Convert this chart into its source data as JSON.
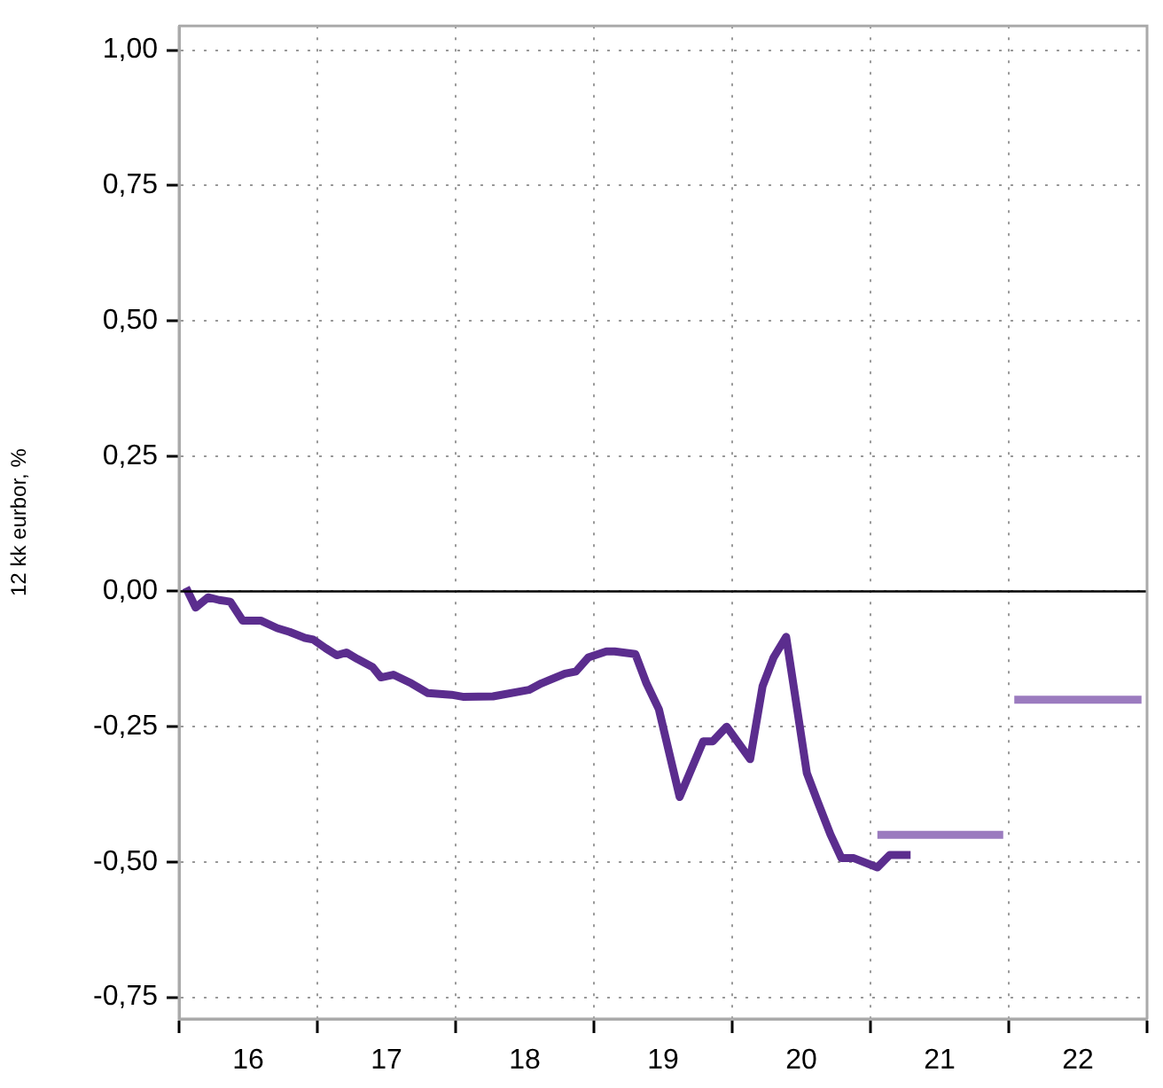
{
  "chart_data": {
    "type": "line",
    "ylabel": "12 kk eurbor, %",
    "xlim": [
      15.5,
      22.5
    ],
    "xticks": [
      {
        "value": 15.5,
        "label": null
      },
      16,
      {
        "value": 16.5,
        "label": null
      },
      17,
      {
        "value": 17.5,
        "label": null
      },
      18,
      {
        "value": 18.5,
        "label": null
      },
      19,
      {
        "value": 19.5,
        "label": null
      },
      20,
      {
        "value": 20.5,
        "label": null
      },
      21,
      {
        "value": 21.5,
        "label": null
      },
      22,
      {
        "value": 22.5,
        "label": null
      }
    ],
    "ylim": [
      -0.79,
      1.045
    ],
    "yticks": [
      {
        "value": -0.75,
        "label": "-0,75"
      },
      {
        "value": -0.5,
        "label": "-0,50"
      },
      {
        "value": -0.25,
        "label": "-0,25"
      },
      {
        "value": 0,
        "label": "0,00"
      },
      {
        "value": 0.25,
        "label": "0,25"
      },
      {
        "value": 0.5,
        "label": "0,50"
      },
      {
        "value": 0.75,
        "label": "0,75"
      },
      {
        "value": 1,
        "label": "1,00"
      }
    ],
    "grid": true,
    "legend": false,
    "marker": "none",
    "line_style": "solid",
    "ref_lines": [
      {
        "axis": "y",
        "value": 0,
        "color": "#000000"
      }
    ],
    "series": [
      {
        "color": "#5b2d8e",
        "x": [
          15.55,
          15.62,
          15.71,
          15.79,
          15.87,
          15.96,
          16.09,
          16.21,
          16.3,
          16.41,
          16.47,
          16.56,
          16.64,
          16.71,
          16.79,
          16.9,
          16.96,
          17.05,
          17.18,
          17.3,
          17.47,
          17.56,
          17.77,
          18.03,
          18.12,
          18.29,
          18.37,
          18.46,
          18.59,
          18.65,
          18.8,
          18.88,
          18.97,
          19.12,
          19.29,
          19.36,
          19.46,
          19.63,
          19.72,
          19.8,
          19.89,
          19.97,
          20.04,
          20.12,
          20.21,
          20.29,
          20.38,
          20.55,
          20.64,
          20.79
        ],
        "values": [
          0.007,
          -0.03,
          -0.011,
          -0.016,
          -0.019,
          -0.054,
          -0.054,
          -0.068,
          -0.075,
          -0.086,
          -0.089,
          -0.105,
          -0.118,
          -0.113,
          -0.125,
          -0.14,
          -0.159,
          -0.154,
          -0.17,
          -0.188,
          -0.191,
          -0.195,
          -0.194,
          -0.182,
          -0.17,
          -0.152,
          -0.148,
          -0.122,
          -0.111,
          -0.111,
          -0.116,
          -0.17,
          -0.218,
          -0.38,
          -0.277,
          -0.277,
          -0.25,
          -0.31,
          -0.175,
          -0.122,
          -0.084,
          -0.218,
          -0.336,
          -0.39,
          -0.449,
          -0.493,
          -0.493,
          -0.51,
          -0.487,
          -0.487
        ]
      },
      {
        "color": "#9b7bbf",
        "x": [
          20.55,
          21.46
        ],
        "values": [
          -0.45,
          -0.45
        ]
      },
      {
        "color": "#9b7bbf",
        "x": [
          21.54,
          22.46
        ],
        "values": [
          -0.2,
          -0.2
        ]
      }
    ]
  }
}
